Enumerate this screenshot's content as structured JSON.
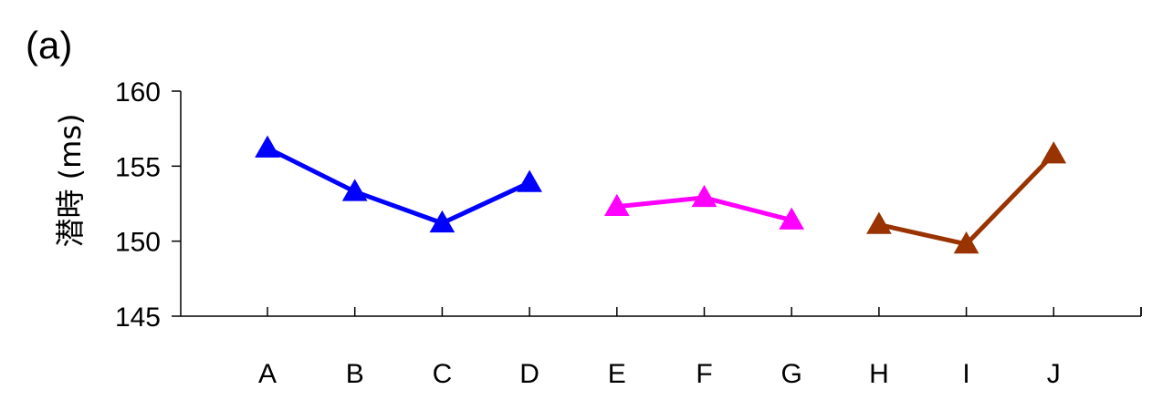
{
  "panel_label": "(a)",
  "chart_data": {
    "type": "line",
    "title": "",
    "xlabel": "",
    "ylabel": "潜時 (ms)",
    "ylim": [
      145,
      160
    ],
    "yticks": [
      145,
      150,
      155,
      160
    ],
    "categories": [
      "A",
      "B",
      "C",
      "D",
      "E",
      "F",
      "G",
      "H",
      "I",
      "J"
    ],
    "grid": false,
    "legend": "none",
    "series": [
      {
        "color": "#0000ff",
        "marker": "triangle-up",
        "points": [
          {
            "x": "A",
            "y": 156.2
          },
          {
            "x": "B",
            "y": 153.3
          },
          {
            "x": "C",
            "y": 151.2
          },
          {
            "x": "D",
            "y": 153.9
          }
        ]
      },
      {
        "color": "#ff00ff",
        "marker": "triangle-up",
        "points": [
          {
            "x": "E",
            "y": 152.3
          },
          {
            "x": "F",
            "y": 152.9
          },
          {
            "x": "G",
            "y": 151.4
          }
        ]
      },
      {
        "color": "#993300",
        "marker": "triangle-up",
        "points": [
          {
            "x": "H",
            "y": 151.1
          },
          {
            "x": "I",
            "y": 149.8
          },
          {
            "x": "J",
            "y": 155.8
          }
        ]
      }
    ]
  }
}
